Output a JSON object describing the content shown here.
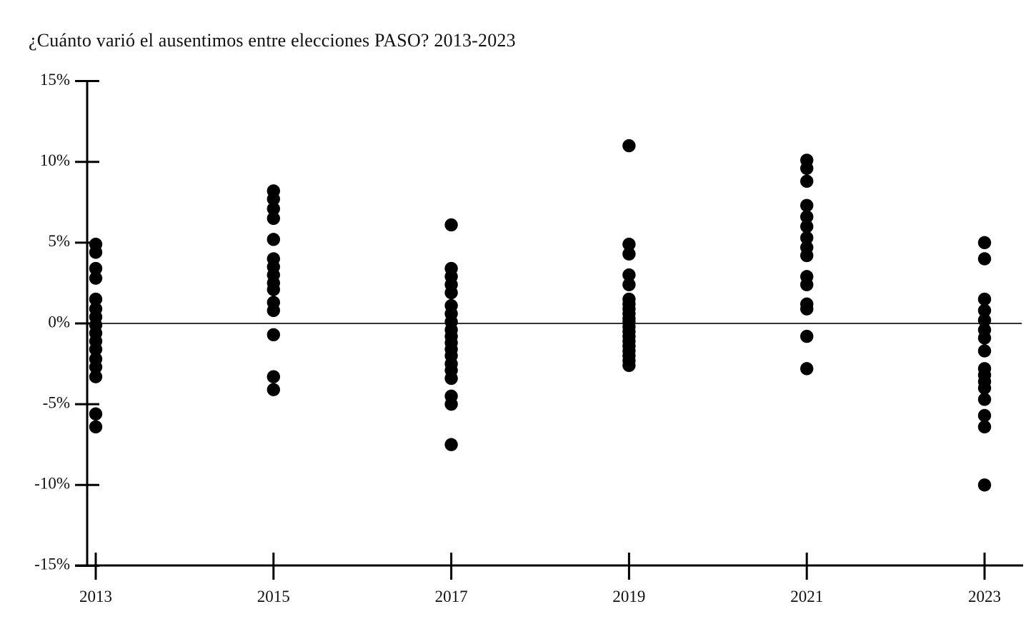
{
  "chart_data": {
    "type": "scatter",
    "title": "¿Cuánto varió el ausentimos entre elecciones PASO? 2013-2023",
    "xlabel": "",
    "ylabel": "",
    "x_categories": [
      "2013",
      "2015",
      "2017",
      "2019",
      "2021",
      "2023"
    ],
    "y_axis": {
      "tick_labels": [
        "15%",
        "10%",
        "5%",
        "0%",
        "-5%",
        "-10%",
        "-15%"
      ],
      "tick_values": [
        15,
        10,
        5,
        0,
        -5,
        -10,
        -15
      ],
      "ylim": [
        -15,
        15
      ],
      "unit": "percent"
    },
    "grid": false,
    "zero_line": true,
    "legend": "none",
    "marker": {
      "shape": "circle",
      "color": "#000000",
      "radius_px": 9.2
    },
    "series": [
      {
        "name": "2013",
        "x": "2013",
        "values": [
          4.9,
          4.4,
          3.4,
          2.8,
          1.5,
          0.9,
          0.4,
          -0.1,
          -0.6,
          -1.1,
          -1.6,
          -2.2,
          -2.7,
          -3.3,
          -5.6,
          -6.4
        ]
      },
      {
        "name": "2015",
        "x": "2015",
        "values": [
          8.2,
          7.7,
          7.1,
          6.5,
          5.2,
          4.0,
          3.5,
          3.0,
          2.5,
          2.1,
          1.3,
          0.8,
          -0.7,
          -3.3,
          -4.1
        ]
      },
      {
        "name": "2017",
        "x": "2017",
        "values": [
          6.1,
          3.4,
          2.9,
          2.4,
          1.9,
          1.1,
          0.6,
          0.1,
          -0.4,
          -0.8,
          -1.2,
          -1.6,
          -2.0,
          -2.5,
          -2.9,
          -3.4,
          -4.5,
          -5.0,
          -7.5
        ]
      },
      {
        "name": "2019",
        "x": "2019",
        "values": [
          11.0,
          4.9,
          4.3,
          3.0,
          2.4,
          1.5,
          1.2,
          0.9,
          0.6,
          0.3,
          0.1,
          -0.2,
          -0.5,
          -0.8,
          -1.1,
          -1.4,
          -1.7,
          -2.0,
          -2.3,
          -2.6
        ]
      },
      {
        "name": "2021",
        "x": "2021",
        "values": [
          10.1,
          9.6,
          8.8,
          7.3,
          6.6,
          6.0,
          5.3,
          4.7,
          4.2,
          2.9,
          2.4,
          1.2,
          0.9,
          -0.8,
          -2.8
        ]
      },
      {
        "name": "2023",
        "x": "2023",
        "values": [
          5.0,
          4.0,
          1.5,
          0.8,
          0.2,
          -0.4,
          -0.9,
          -1.7,
          -2.8,
          -3.2,
          -3.6,
          -4.0,
          -4.7,
          -5.7,
          -6.4,
          -10.0
        ]
      }
    ]
  },
  "colors": {
    "background": "#ffffff",
    "axis": "#000000",
    "zero_line": "#333333",
    "dot": "#000000",
    "text": "#111111"
  }
}
